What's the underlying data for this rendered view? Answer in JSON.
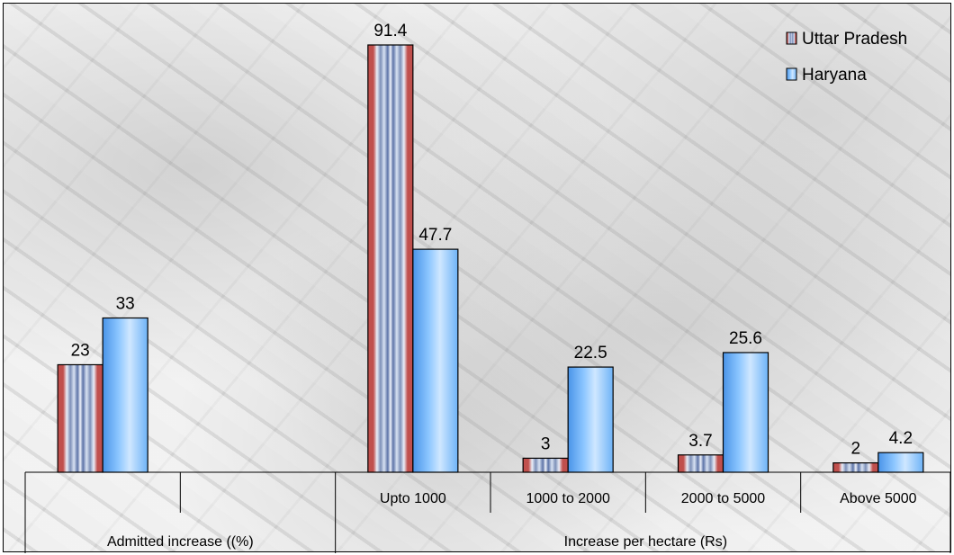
{
  "chart_data": {
    "type": "bar",
    "categories": [
      "",
      "",
      "Upto 1000",
      "1000 to 2000",
      "2000 to 5000",
      "Above 5000"
    ],
    "groups": [
      {
        "label": "Admitted increase ((%)",
        "span": [
          0,
          1
        ]
      },
      {
        "label": "Increase per hectare (Rs)",
        "span": [
          2,
          5
        ]
      }
    ],
    "series": [
      {
        "name": "Uttar Pradesh",
        "values": [
          23,
          null,
          91.4,
          3,
          3.7,
          2
        ],
        "labels": [
          "23",
          "",
          "91.4",
          "3",
          "3.7",
          "2"
        ],
        "color": "#c0504d"
      },
      {
        "name": "Haryana",
        "values": [
          33,
          null,
          47.7,
          22.5,
          25.6,
          4.2
        ],
        "labels": [
          "33",
          "",
          "47.7",
          "22.5",
          "25.6",
          "4.2"
        ],
        "color": "#5aa9f5"
      }
    ],
    "ylim": [
      0,
      100
    ],
    "grid": false,
    "legend": "top-right",
    "title": "",
    "xlabel": "",
    "ylabel": ""
  }
}
